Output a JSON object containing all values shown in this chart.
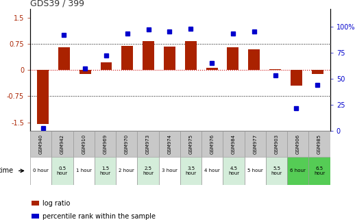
{
  "title": "GDS39 / 399",
  "samples": [
    "GSM940",
    "GSM942",
    "GSM910",
    "GSM969",
    "GSM970",
    "GSM973",
    "GSM974",
    "GSM975",
    "GSM976",
    "GSM984",
    "GSM977",
    "GSM903",
    "GSM906",
    "GSM985"
  ],
  "time_labels": [
    "0 hour",
    "0.5\nhour",
    "1 hour",
    "1.5\nhour",
    "2 hour",
    "2.5\nhour",
    "3 hour",
    "3.5\nhour",
    "4 hour",
    "4.5\nhour",
    "5 hour",
    "5.5\nhour",
    "6 hour",
    "6.5\nhour"
  ],
  "log_ratio": [
    -1.55,
    0.65,
    -0.12,
    0.22,
    0.7,
    0.82,
    0.68,
    0.82,
    0.07,
    0.65,
    0.6,
    0.02,
    -0.45,
    -0.12
  ],
  "percentile": [
    3,
    92,
    60,
    72,
    93,
    97,
    95,
    98,
    65,
    93,
    95,
    53,
    22,
    44
  ],
  "bar_color": "#aa2200",
  "dot_color": "#0000cc",
  "bg_color": "#ffffff",
  "grid_color": "#000000",
  "zero_line_color": "#cc0000",
  "ylim_left": [
    -1.75,
    1.75
  ],
  "ylim_right": [
    0,
    116.67
  ],
  "yticks_left": [
    -1.5,
    -0.75,
    0,
    0.75,
    1.5
  ],
  "yticks_right": [
    0,
    25,
    50,
    75,
    100
  ],
  "hlines": [
    0.75,
    -0.75
  ],
  "row_gsm_bg": "#c8c8c8",
  "time_row_colors": [
    "#ffffff",
    "#d4edda",
    "#ffffff",
    "#d4edda",
    "#ffffff",
    "#d4edda",
    "#ffffff",
    "#d4edda",
    "#ffffff",
    "#d4edda",
    "#ffffff",
    "#d4edda",
    "#55cc55",
    "#55cc55"
  ],
  "legend_log_ratio": "log ratio",
  "legend_percentile": "percentile rank within the sample",
  "xlabel_time": "time"
}
